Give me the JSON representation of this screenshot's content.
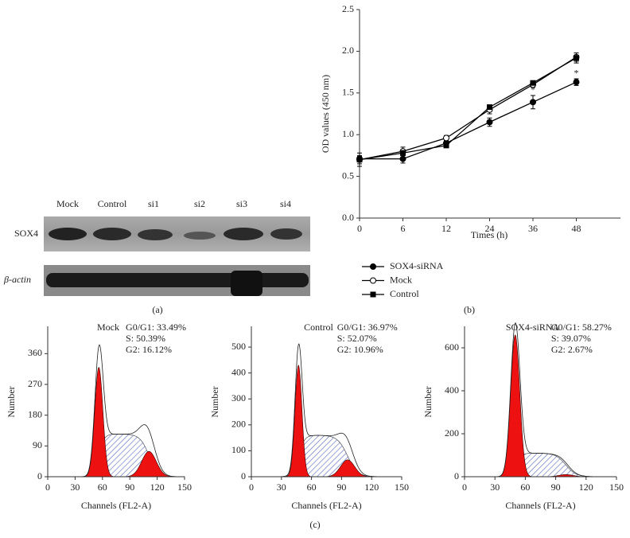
{
  "panel_labels": [
    "(a)",
    "(b)",
    "(c)"
  ],
  "blot": {
    "lanes": [
      "Mock",
      "Control",
      "si1",
      "si2",
      "si3",
      "si4"
    ],
    "rows": [
      "SOX4",
      "β-actin"
    ]
  },
  "chart_data": [
    {
      "type": "line",
      "xlabel": "Times (h)",
      "ylabel": "OD values (450 nm)",
      "categories": [
        "0",
        "6",
        "12",
        "24",
        "36",
        "48"
      ],
      "ylim": [
        0,
        2.5
      ],
      "yticks": [
        {
          "value": 0,
          "label": "0.0"
        },
        0.5,
        {
          "value": 1,
          "label": "1.0"
        },
        1.5,
        {
          "value": 2,
          "label": "2.0"
        },
        2.5
      ],
      "legend": "below",
      "series": [
        {
          "name": "SOX4-siRNA",
          "color": "#000000",
          "marker": "circle-filled",
          "values": [
            0.71,
            0.71,
            0.9,
            1.15,
            1.39,
            1.63
          ],
          "errors": [
            0.03,
            0.05,
            0.03,
            0.05,
            0.08,
            0.04
          ],
          "point_labels": [
            null,
            null,
            null,
            null,
            "*",
            "*"
          ]
        },
        {
          "name": "Mock",
          "color": "#000000",
          "marker": "circle-open",
          "values": [
            0.7,
            0.8,
            0.96,
            1.3,
            1.6,
            1.93
          ],
          "errors": [
            0.05,
            0.05,
            0.03,
            0.05,
            0.03,
            0.05
          ]
        },
        {
          "name": "Control",
          "color": "#000000",
          "marker": "square",
          "values": [
            0.7,
            0.78,
            0.87,
            1.33,
            1.62,
            1.92
          ],
          "errors": [
            0.08,
            0.03,
            0.02,
            0.02,
            0.02,
            0.06
          ]
        }
      ]
    },
    {
      "type": "cytometry",
      "title": "Mock",
      "xlabel": "Channels (FL2-A)",
      "ylabel": "Number",
      "annotations": [
        "G0/G1: 33.49%",
        "S: 50.39%",
        "G2: 16.12%"
      ],
      "xlim": [
        0,
        150
      ],
      "xticks": [
        0,
        30,
        60,
        90,
        120,
        150
      ],
      "ylim": [
        0,
        440
      ],
      "yticks": [
        0,
        90,
        180,
        270,
        360
      ],
      "g1": {
        "center": 56,
        "height": 320,
        "sd": 4.5
      },
      "s": {
        "height": 125
      },
      "g2": {
        "center": 111,
        "height": 74,
        "sd": 8
      },
      "color": "#ee1111"
    },
    {
      "type": "cytometry",
      "title": "Control",
      "xlabel": "Channels (FL2-A)",
      "ylabel": "Number",
      "annotations": [
        "G0/G1: 36.97%",
        "S: 52.07%",
        "G2: 10.96%"
      ],
      "xlim": [
        0,
        150
      ],
      "xticks": [
        0,
        30,
        60,
        90,
        120,
        150
      ],
      "ylim": [
        0,
        580
      ],
      "yticks": [
        0,
        100,
        200,
        300,
        400,
        500
      ],
      "g1": {
        "center": 47,
        "height": 430,
        "sd": 3.5
      },
      "s": {
        "height": 160
      },
      "g2": {
        "center": 96,
        "height": 65,
        "sd": 7
      },
      "color": "#ee1111"
    },
    {
      "type": "cytometry",
      "title": "SOX4-siRNA",
      "xlabel": "Channels (FL2-A)",
      "ylabel": "Number",
      "annotations": [
        "G0/G1: 58.27%",
        "S: 39.07%",
        "G2: 2.67%"
      ],
      "xlim": [
        0,
        150
      ],
      "xticks": [
        0,
        30,
        60,
        90,
        120,
        150
      ],
      "ylim": [
        0,
        700
      ],
      "yticks": [
        0,
        200,
        400,
        600
      ],
      "g1": {
        "center": 50,
        "height": 660,
        "sd": 4.5
      },
      "s": {
        "height": 110
      },
      "g2": {
        "center": 100,
        "height": 10,
        "sd": 7
      },
      "color": "#ee1111"
    }
  ]
}
